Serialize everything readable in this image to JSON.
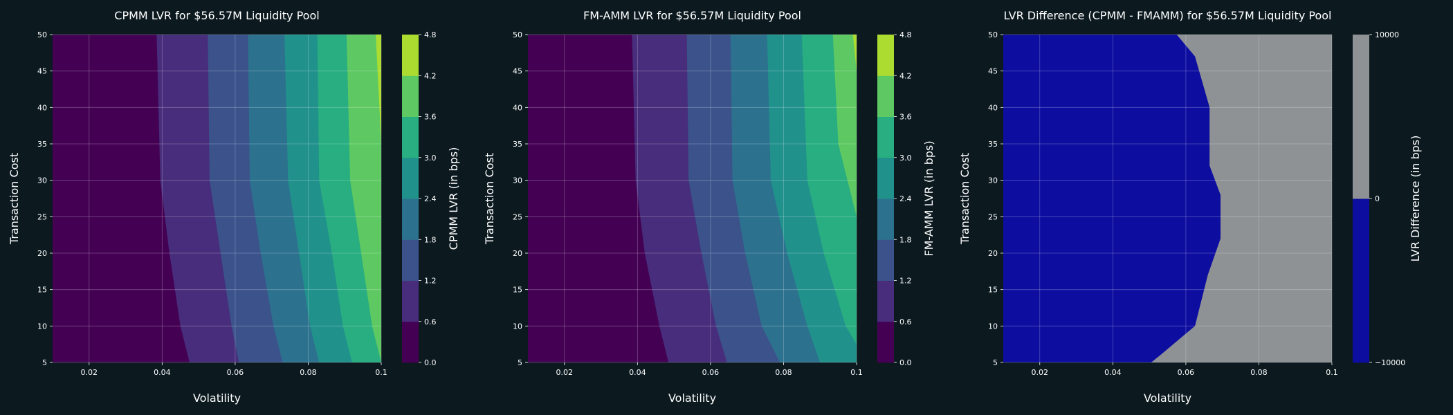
{
  "theme": {
    "background": "#0c1a20",
    "text": "#ffffff",
    "grid": "#ffffff",
    "viridis": [
      "#440154",
      "#472d7b",
      "#3b528b",
      "#2c728e",
      "#21918c",
      "#28ae80",
      "#5ec962",
      "#addc30",
      "#fde725"
    ],
    "diff_colors": [
      "#0d0da0",
      "#8e9294"
    ]
  },
  "chart_data": [
    {
      "type": "contour",
      "title": "CPMM LVR for $56.57M Liquidity Pool",
      "xlabel": "Volatility",
      "ylabel": "Transaction Cost",
      "xlim": [
        0.01,
        0.1
      ],
      "ylim": [
        5,
        50
      ],
      "xticks": [
        0.02,
        0.04,
        0.06,
        0.08,
        0.1
      ],
      "yticks": [
        5,
        10,
        15,
        20,
        25,
        30,
        35,
        40,
        45,
        50
      ],
      "grid": true,
      "colorbar": {
        "label": "CPMM LVR (in bps)",
        "ticks": [
          "0.0",
          "0.6",
          "1.2",
          "1.8",
          "2.4",
          "3.0",
          "3.6",
          "4.2",
          "4.8"
        ],
        "levels": [
          0.0,
          0.6,
          1.2,
          1.8,
          2.4,
          3.0,
          3.6,
          4.2,
          4.8
        ]
      },
      "contour_boundaries": [
        {
          "level": 0.6,
          "points": [
            [
              0.0385,
              50
            ],
            [
              0.0395,
              30
            ],
            [
              0.042,
              20
            ],
            [
              0.045,
              10
            ],
            [
              0.0475,
              5
            ]
          ]
        },
        {
          "level": 1.2,
          "points": [
            [
              0.0525,
              50
            ],
            [
              0.053,
              30
            ],
            [
              0.056,
              20
            ],
            [
              0.059,
              10
            ],
            [
              0.061,
              5
            ]
          ]
        },
        {
          "level": 1.8,
          "points": [
            [
              0.0635,
              50
            ],
            [
              0.064,
              30
            ],
            [
              0.067,
              20
            ],
            [
              0.0705,
              10
            ],
            [
              0.073,
              5
            ]
          ]
        },
        {
          "level": 2.4,
          "points": [
            [
              0.0735,
              50
            ],
            [
              0.0745,
              30
            ],
            [
              0.0775,
              20
            ],
            [
              0.0805,
              10
            ],
            [
              0.083,
              5
            ]
          ]
        },
        {
          "level": 3.0,
          "points": [
            [
              0.0825,
              50
            ],
            [
              0.083,
              30
            ],
            [
              0.0865,
              20
            ],
            [
              0.0895,
              10
            ],
            [
              0.092,
              5
            ]
          ]
        },
        {
          "level": 3.6,
          "points": [
            [
              0.0905,
              50
            ],
            [
              0.0915,
              30
            ],
            [
              0.0945,
              20
            ],
            [
              0.0975,
              10
            ],
            [
              0.1,
              5
            ]
          ]
        },
        {
          "level": 4.2,
          "points": [
            [
              0.0985,
              50
            ],
            [
              0.0995,
              40
            ],
            [
              0.1,
              35
            ]
          ]
        }
      ]
    },
    {
      "type": "contour",
      "title": "FM-AMM LVR for $56.57M Liquidity Pool",
      "xlabel": "Volatility",
      "ylabel": "Transaction Cost",
      "xlim": [
        0.01,
        0.1
      ],
      "ylim": [
        5,
        50
      ],
      "xticks": [
        0.02,
        0.04,
        0.06,
        0.08,
        0.1
      ],
      "yticks": [
        5,
        10,
        15,
        20,
        25,
        30,
        35,
        40,
        45,
        50
      ],
      "grid": true,
      "colorbar": {
        "label": "FM-AMM LVR (in bps)",
        "ticks": [
          "0.0",
          "0.6",
          "1.2",
          "1.8",
          "2.4",
          "3.0",
          "3.6",
          "4.2",
          "4.8"
        ],
        "levels": [
          0.0,
          0.6,
          1.2,
          1.8,
          2.4,
          3.0,
          3.6,
          4.2,
          4.8
        ]
      },
      "contour_boundaries": [
        {
          "level": 0.6,
          "points": [
            [
              0.0385,
              50
            ],
            [
              0.0395,
              30
            ],
            [
              0.042,
              20
            ],
            [
              0.046,
              10
            ],
            [
              0.0485,
              5
            ]
          ]
        },
        {
          "level": 1.2,
          "points": [
            [
              0.0535,
              50
            ],
            [
              0.054,
              30
            ],
            [
              0.0575,
              20
            ],
            [
              0.0615,
              10
            ],
            [
              0.0645,
              5
            ]
          ]
        },
        {
          "level": 1.8,
          "points": [
            [
              0.0655,
              50
            ],
            [
              0.066,
              30
            ],
            [
              0.0695,
              20
            ],
            [
              0.074,
              10
            ],
            [
              0.079,
              5
            ]
          ]
        },
        {
          "level": 2.4,
          "points": [
            [
              0.0755,
              50
            ],
            [
              0.0765,
              30
            ],
            [
              0.081,
              20
            ],
            [
              0.0865,
              10
            ],
            [
              0.09,
              5
            ]
          ]
        },
        {
          "level": 3.0,
          "points": [
            [
              0.085,
              50
            ],
            [
              0.0865,
              30
            ],
            [
              0.091,
              20
            ],
            [
              0.097,
              10
            ],
            [
              0.1,
              7.5
            ]
          ]
        },
        {
          "level": 3.6,
          "points": [
            [
              0.0935,
              50
            ],
            [
              0.095,
              35
            ],
            [
              0.1,
              25
            ]
          ]
        },
        {
          "level": 4.2,
          "points": [
            [
              0.099,
              50
            ],
            [
              0.1,
              45
            ]
          ]
        }
      ]
    },
    {
      "type": "contour",
      "title": "LVR Difference (CPMM - FMAMM) for $56.57M Liquidity Pool",
      "xlabel": "Volatility",
      "ylabel": "Transaction Cost",
      "xlim": [
        0.01,
        0.1
      ],
      "ylim": [
        5,
        50
      ],
      "xticks": [
        0.02,
        0.04,
        0.06,
        0.08,
        0.1
      ],
      "yticks": [
        5,
        10,
        15,
        20,
        25,
        30,
        35,
        40,
        45,
        50
      ],
      "grid": true,
      "colorbar": {
        "label": "LVR Difference (in bps)",
        "ticks": [
          "−10000",
          "0",
          "10000"
        ],
        "levels": [
          -10000,
          0,
          10000
        ]
      },
      "contour_boundaries": [
        {
          "level": 0,
          "points": [
            [
              0.0575,
              50
            ],
            [
              0.0625,
              47
            ],
            [
              0.0665,
              40
            ],
            [
              0.0665,
              32
            ],
            [
              0.0695,
              28
            ],
            [
              0.0695,
              22
            ],
            [
              0.066,
              17
            ],
            [
              0.0625,
              10
            ],
            [
              0.053,
              6
            ],
            [
              0.0505,
              5
            ]
          ]
        }
      ]
    }
  ]
}
